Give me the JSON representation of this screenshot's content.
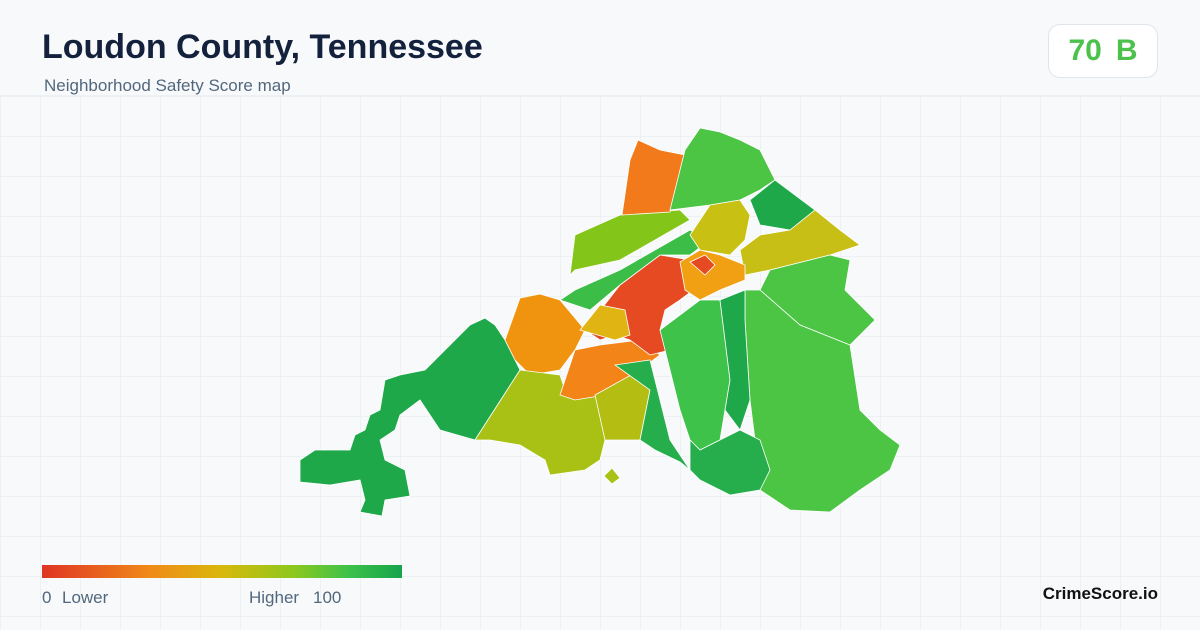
{
  "header": {
    "title": "Loudon County, Tennessee",
    "subtitle": "Neighborhood Safety Score map"
  },
  "score": {
    "value": "70",
    "grade": "B"
  },
  "legend": {
    "min": "0",
    "min_label": "Lower",
    "max_label": "Higher",
    "max": "100"
  },
  "brand": "CrimeScore.io"
}
